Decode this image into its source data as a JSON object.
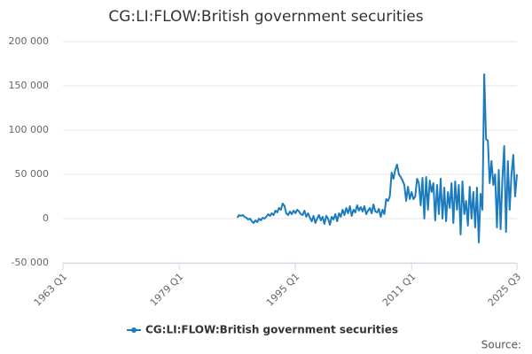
{
  "chart_data": {
    "type": "line",
    "title": "CG:LI:FLOW:British government securities",
    "source": "Source:",
    "x": [
      "1987 Q1",
      "1987 Q2",
      "1987 Q3",
      "1987 Q4",
      "1988 Q1",
      "1988 Q2",
      "1988 Q3",
      "1988 Q4",
      "1989 Q1",
      "1989 Q2",
      "1989 Q3",
      "1989 Q4",
      "1990 Q1",
      "1990 Q2",
      "1990 Q3",
      "1990 Q4",
      "1991 Q1",
      "1991 Q2",
      "1991 Q3",
      "1991 Q4",
      "1992 Q1",
      "1992 Q2",
      "1992 Q3",
      "1992 Q4",
      "1993 Q1",
      "1993 Q2",
      "1993 Q3",
      "1993 Q4",
      "1994 Q1",
      "1994 Q2",
      "1994 Q3",
      "1994 Q4",
      "1995 Q1",
      "1995 Q2",
      "1995 Q3",
      "1995 Q4",
      "1996 Q1",
      "1996 Q2",
      "1996 Q3",
      "1996 Q4",
      "1997 Q1",
      "1997 Q2",
      "1997 Q3",
      "1997 Q4",
      "1998 Q1",
      "1998 Q2",
      "1998 Q3",
      "1998 Q4",
      "1999 Q1",
      "1999 Q2",
      "1999 Q3",
      "1999 Q4",
      "2000 Q1",
      "2000 Q2",
      "2000 Q3",
      "2000 Q4",
      "2001 Q1",
      "2001 Q2",
      "2001 Q3",
      "2001 Q4",
      "2002 Q1",
      "2002 Q2",
      "2002 Q3",
      "2002 Q4",
      "2003 Q1",
      "2003 Q2",
      "2003 Q3",
      "2003 Q4",
      "2004 Q1",
      "2004 Q2",
      "2004 Q3",
      "2004 Q4",
      "2005 Q1",
      "2005 Q2",
      "2005 Q3",
      "2005 Q4",
      "2006 Q1",
      "2006 Q2",
      "2006 Q3",
      "2006 Q4",
      "2007 Q1",
      "2007 Q2",
      "2007 Q3",
      "2007 Q4",
      "2008 Q1",
      "2008 Q2",
      "2008 Q3",
      "2008 Q4",
      "2009 Q1",
      "2009 Q2",
      "2009 Q3",
      "2009 Q4",
      "2010 Q1",
      "2010 Q2",
      "2010 Q3",
      "2010 Q4",
      "2011 Q1",
      "2011 Q2",
      "2011 Q3",
      "2011 Q4",
      "2012 Q1",
      "2012 Q2",
      "2012 Q3",
      "2012 Q4",
      "2013 Q1",
      "2013 Q2",
      "2013 Q3",
      "2013 Q4",
      "2014 Q1",
      "2014 Q2",
      "2014 Q3",
      "2014 Q4",
      "2015 Q1",
      "2015 Q2",
      "2015 Q3",
      "2015 Q4",
      "2016 Q1",
      "2016 Q2",
      "2016 Q3",
      "2016 Q4",
      "2017 Q1",
      "2017 Q2",
      "2017 Q3",
      "2017 Q4",
      "2018 Q1",
      "2018 Q2",
      "2018 Q3",
      "2018 Q4",
      "2019 Q1",
      "2019 Q2",
      "2019 Q3",
      "2019 Q4",
      "2020 Q1",
      "2020 Q2",
      "2020 Q3",
      "2020 Q4",
      "2021 Q1",
      "2021 Q2",
      "2021 Q3",
      "2021 Q4",
      "2022 Q1",
      "2022 Q2",
      "2022 Q3",
      "2022 Q4",
      "2023 Q1",
      "2023 Q2",
      "2023 Q3",
      "2023 Q4",
      "2024 Q1",
      "2024 Q2",
      "2024 Q3",
      "2024 Q4",
      "2025 Q1",
      "2025 Q2",
      "2025 Q3"
    ],
    "series": [
      {
        "name": "CG:LI:FLOW:British government securities",
        "color": "#1a7bbf",
        "values": [
          1000,
          4000,
          3000,
          4000,
          2000,
          1000,
          -1000,
          0,
          -3000,
          -5000,
          -2000,
          -4000,
          0,
          -2000,
          1000,
          0,
          2000,
          5000,
          3000,
          6000,
          4000,
          9000,
          7000,
          12000,
          10000,
          17000,
          14000,
          6000,
          4000,
          8000,
          5000,
          9000,
          6000,
          10000,
          8000,
          5000,
          4000,
          9000,
          2000,
          6000,
          1000,
          -3000,
          3000,
          -5000,
          0,
          4000,
          -2000,
          2000,
          -6000,
          3000,
          0,
          -7000,
          2000,
          -1000,
          5000,
          -3000,
          6000,
          2000,
          10000,
          4000,
          12000,
          6000,
          14000,
          3000,
          10000,
          7000,
          15000,
          9000,
          13000,
          8000,
          14000,
          5000,
          9000,
          12000,
          6000,
          16000,
          8000,
          7000,
          11000,
          2000,
          10000,
          5000,
          22000,
          20000,
          25000,
          52000,
          45000,
          55000,
          61000,
          50000,
          47000,
          43000,
          38000,
          20000,
          36000,
          22000,
          30000,
          22000,
          25000,
          45000,
          40000,
          15000,
          46000,
          0,
          47000,
          10000,
          43000,
          30000,
          40000,
          -2000,
          38000,
          5000,
          45000,
          0,
          35000,
          -3000,
          30000,
          12000,
          40000,
          -5000,
          42000,
          10000,
          38000,
          -18000,
          42000,
          5000,
          20000,
          -8000,
          36000,
          0,
          30000,
          -10000,
          35000,
          -27000,
          28000,
          10000,
          163000,
          90000,
          88000,
          40000,
          65000,
          38000,
          50000,
          -10000,
          55000,
          -12000,
          45000,
          82000,
          -15000,
          65000,
          10000,
          50000,
          72000,
          25000,
          50000
        ]
      }
    ],
    "xlim": [
      "1963 Q1",
      "2025 Q3"
    ],
    "xticks": [
      "1963 Q1",
      "1979 Q1",
      "1995 Q1",
      "2011 Q1",
      "2025 Q3"
    ],
    "ylim": [
      -50000,
      200000
    ],
    "yticks": [
      {
        "value": -50000,
        "label": "-50 000"
      },
      0,
      {
        "value": 50000,
        "label": "50 000"
      },
      {
        "value": 100000,
        "label": "100 000"
      },
      {
        "value": 150000,
        "label": "150 000"
      },
      {
        "value": 200000,
        "label": "200 000"
      }
    ],
    "grid": true
  }
}
